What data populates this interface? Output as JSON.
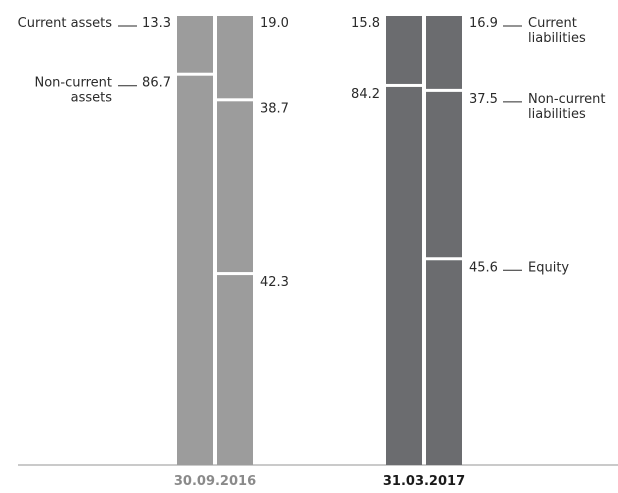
{
  "chart_data": {
    "type": "stacked-bar",
    "unit": "%",
    "groups": [
      {
        "date": "30.09.2016",
        "color": "#9c9c9c",
        "date_color": "#8a8a8a",
        "assets": [
          {
            "name": "Current assets",
            "value": 13.3,
            "display": "13.3",
            "label_lines": [
              "Current assets"
            ]
          },
          {
            "name": "Non-current assets",
            "value": 86.7,
            "display": "86.7",
            "label_lines": [
              "Non-current",
              "assets"
            ]
          }
        ],
        "liabilities": [
          {
            "name": "Current liabilities",
            "value": 19.0,
            "display": "19.0"
          },
          {
            "name": "Non-current liabilities",
            "value": 38.7,
            "display": "38.7"
          },
          {
            "name": "Equity",
            "value": 42.3,
            "display": "42.3"
          }
        ]
      },
      {
        "date": "31.03.2017",
        "color": "#6b6c6f",
        "date_color": "#1a1a1a",
        "assets": [
          {
            "name": "Current assets",
            "value": 15.8,
            "display": "15.8"
          },
          {
            "name": "Non-current assets",
            "value": 84.2,
            "display": "84.2"
          }
        ],
        "liabilities": [
          {
            "name": "Current liabilities",
            "value": 16.9,
            "display": "16.9",
            "label_lines": [
              "Current",
              "liabilities"
            ]
          },
          {
            "name": "Non-current liabilities",
            "value": 37.5,
            "display": "37.5",
            "label_lines": [
              "Non-current",
              "liabilities"
            ]
          },
          {
            "name": "Equity",
            "value": 45.6,
            "display": "45.6",
            "label_lines": [
              "Equity"
            ]
          }
        ]
      }
    ],
    "ylim": [
      0,
      100
    ],
    "grid": false
  }
}
